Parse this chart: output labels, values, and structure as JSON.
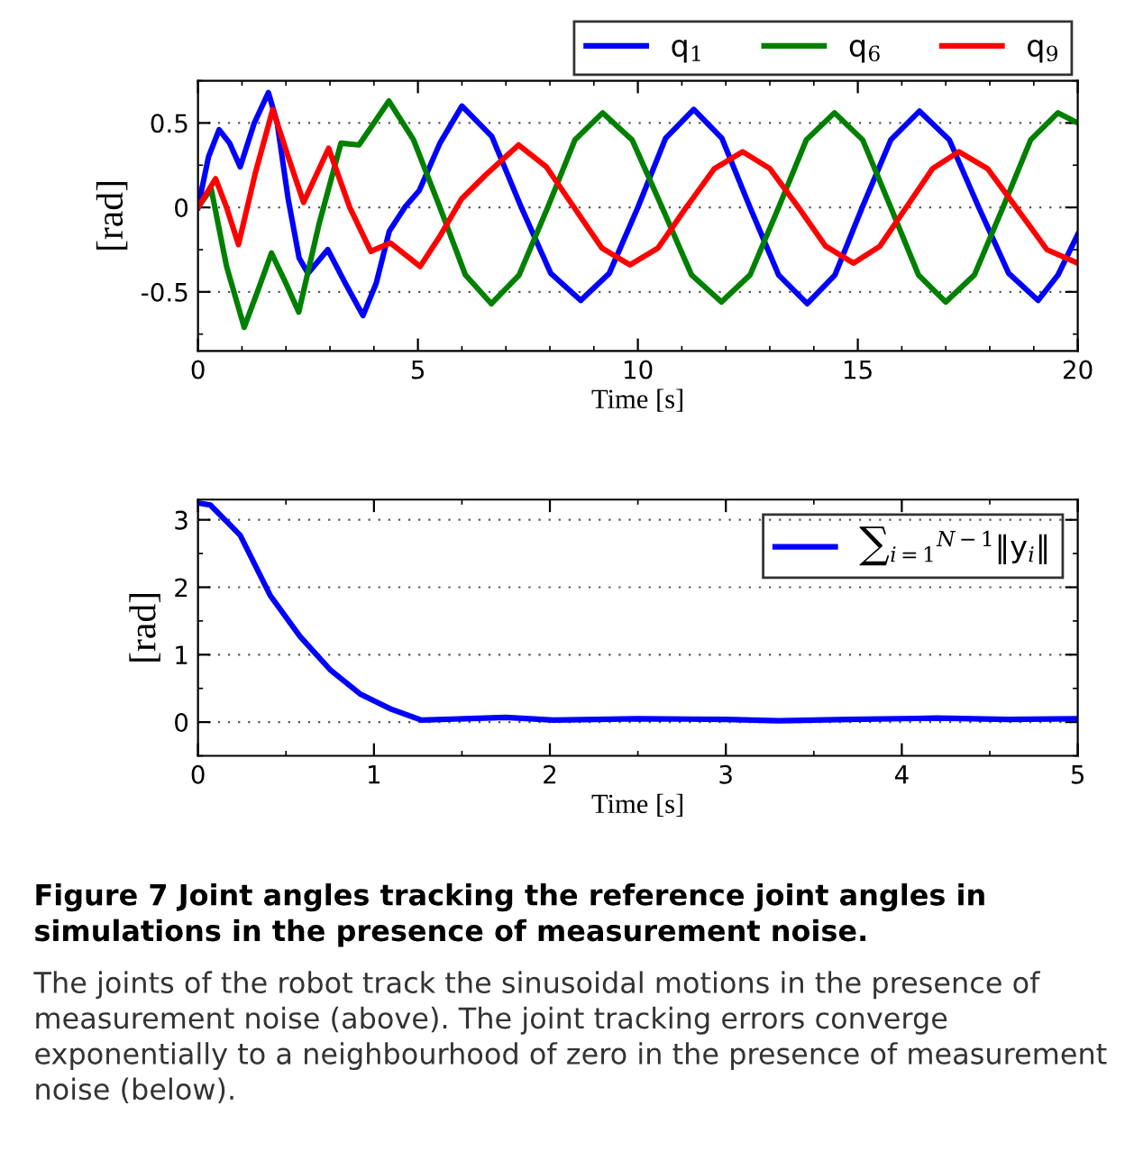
{
  "chart_data": [
    {
      "type": "line",
      "xlabel": "Time [s]",
      "ylabel": "[rad]",
      "xlim": [
        0,
        20
      ],
      "ylim": [
        -0.85,
        0.75
      ],
      "xticks": [
        0,
        5,
        10,
        15,
        20
      ],
      "yticks": [
        -0.5,
        0,
        0.5
      ],
      "grid": "y",
      "legend": "top right",
      "line_style": "solid",
      "series": [
        {
          "name": "q$_{1}$",
          "color": "#0000ff",
          "x": [
            0,
            0.24,
            0.48,
            0.72,
            0.96,
            1.28,
            1.6,
            1.8,
            2.05,
            2.3,
            2.5,
            2.95,
            3.35,
            3.75,
            4.05,
            4.35,
            4.7,
            5.03,
            5.5,
            6.0,
            6.68,
            7.35,
            8.02,
            8.7,
            9.35,
            10.0,
            10.63,
            11.27,
            11.91,
            12.55,
            13.2,
            13.85,
            14.48,
            15.1,
            15.75,
            16.4,
            17.08,
            17.75,
            18.43,
            19.1,
            19.55,
            20
          ],
          "values": [
            0,
            0.3,
            0.46,
            0.38,
            0.24,
            0.5,
            0.68,
            0.5,
            0.05,
            -0.3,
            -0.39,
            -0.25,
            -0.45,
            -0.64,
            -0.45,
            -0.14,
            0.0,
            0.1,
            0.38,
            0.6,
            0.42,
            0,
            -0.39,
            -0.55,
            -0.39,
            0,
            0.41,
            0.58,
            0.41,
            0,
            -0.4,
            -0.57,
            -0.4,
            0,
            0.4,
            0.57,
            0.4,
            0,
            -0.39,
            -0.55,
            -0.4,
            -0.16
          ]
        },
        {
          "name": "q$_{6}$",
          "color": "#008000",
          "x": [
            0,
            0.3,
            0.65,
            1.05,
            1.35,
            1.67,
            2.0,
            2.29,
            2.75,
            3.25,
            3.66,
            4.0,
            4.34,
            4.9,
            5.5,
            6.08,
            6.67,
            7.3,
            7.95,
            8.57,
            9.2,
            9.87,
            10.55,
            11.22,
            11.9,
            12.55,
            13.2,
            13.83,
            14.47,
            15.11,
            15.75,
            16.38,
            17.0,
            17.65,
            18.3,
            18.93,
            19.55,
            20
          ],
          "values": [
            0,
            0.11,
            -0.35,
            -0.71,
            -0.5,
            -0.27,
            -0.45,
            -0.62,
            -0.1,
            0.38,
            0.37,
            0.5,
            0.63,
            0.4,
            0,
            -0.4,
            -0.57,
            -0.4,
            0,
            0.4,
            0.56,
            0.4,
            0,
            -0.4,
            -0.56,
            -0.4,
            0,
            0.4,
            0.56,
            0.4,
            0,
            -0.4,
            -0.56,
            -0.4,
            0,
            0.4,
            0.56,
            0.5
          ]
        },
        {
          "name": "q$_{9}$",
          "color": "#ff0000",
          "x": [
            0,
            0.4,
            0.65,
            0.92,
            1.3,
            1.7,
            2.05,
            2.4,
            2.97,
            3.45,
            3.93,
            4.37,
            5.05,
            5.5,
            5.99,
            6.53,
            7.29,
            7.92,
            8.55,
            9.18,
            9.82,
            10.46,
            11.1,
            11.74,
            12.38,
            13.0,
            13.65,
            14.27,
            14.9,
            15.5,
            16.1,
            16.7,
            17.3,
            17.95,
            18.6,
            19.3,
            20
          ],
          "values": [
            0,
            0.17,
            0.0,
            -0.22,
            0.2,
            0.58,
            0.3,
            0.03,
            0.35,
            0.0,
            -0.26,
            -0.21,
            -0.35,
            -0.17,
            0.05,
            0.19,
            0.37,
            0.24,
            0,
            -0.24,
            -0.34,
            -0.24,
            0,
            0.23,
            0.33,
            0.23,
            0,
            -0.23,
            -0.33,
            -0.23,
            0,
            0.23,
            0.33,
            0.23,
            0,
            -0.25,
            -0.33
          ]
        }
      ]
    },
    {
      "type": "line",
      "xlabel": "Time [s]",
      "ylabel": "[rad]",
      "xlim": [
        0,
        5
      ],
      "ylim": [
        -0.5,
        3.3
      ],
      "xticks": [
        0,
        1,
        2,
        3,
        4,
        5
      ],
      "yticks": [
        0,
        1,
        2,
        3
      ],
      "grid": "y",
      "legend": "top right",
      "line_style": "solid",
      "series": [
        {
          "name": "∑$_{i=1}$$^{N−1}$‖y$_{i}$‖",
          "color": "#0000ff",
          "x": [
            0,
            0.07,
            0.24,
            0.41,
            0.58,
            0.75,
            0.92,
            1.1,
            1.27,
            1.75,
            2.02,
            2.5,
            3.0,
            3.3,
            3.7,
            4.2,
            4.6,
            5.0
          ],
          "values": [
            3.25,
            3.22,
            2.77,
            1.88,
            1.27,
            0.78,
            0.42,
            0.19,
            0.03,
            0.07,
            0.03,
            0.05,
            0.04,
            0.02,
            0.04,
            0.06,
            0.04,
            0.05
          ]
        }
      ],
      "annotations": [
        "Figure 7 Joint angles tracking the reference joint angles in simulations in the presence of measurement noise.",
        "The joints of the robot track the sinusoidal motions in the presence of measurement noise (above). The joint tracking errors converge exponentially to a neighbourhood of zero in the presence of measurement noise (below)."
      ]
    }
  ]
}
